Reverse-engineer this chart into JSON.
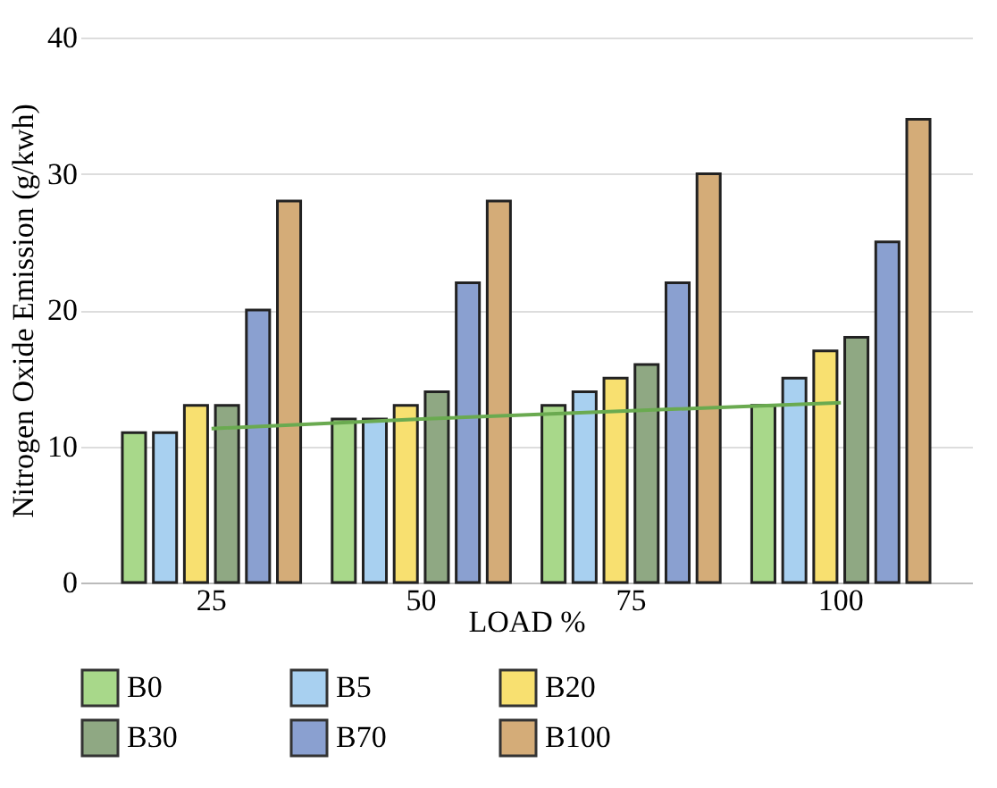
{
  "chart_data": {
    "type": "bar",
    "xlabel": "LOAD %",
    "ylabel": "Nitrogen Oxide Emission (g/kwh)",
    "categories": [
      "25",
      "50",
      "75",
      "100"
    ],
    "ylim": [
      0,
      40
    ],
    "yticks": [
      0,
      10,
      20,
      30,
      40
    ],
    "grid": "y",
    "legend": "bottom",
    "series": [
      {
        "name": "B0",
        "color": "#a8d88a",
        "values": [
          11,
          12,
          13,
          13
        ]
      },
      {
        "name": "B5",
        "color": "#a8d0f0",
        "values": [
          11,
          12,
          14,
          15
        ]
      },
      {
        "name": "B20",
        "color": "#f8e070",
        "values": [
          13,
          13,
          15,
          17
        ]
      },
      {
        "name": "B30",
        "color": "#8fa883",
        "values": [
          13,
          14,
          16,
          18
        ]
      },
      {
        "name": "B70",
        "color": "#8aa0d0",
        "values": [
          20,
          22,
          22,
          25
        ]
      },
      {
        "name": "B100",
        "color": "#d4ac78",
        "values": [
          28,
          28,
          30,
          34
        ]
      },
      {
        "type": "line",
        "color": "#6aaa50",
        "values": [
          11.3,
          12.0,
          12.6,
          13.2
        ]
      }
    ]
  }
}
